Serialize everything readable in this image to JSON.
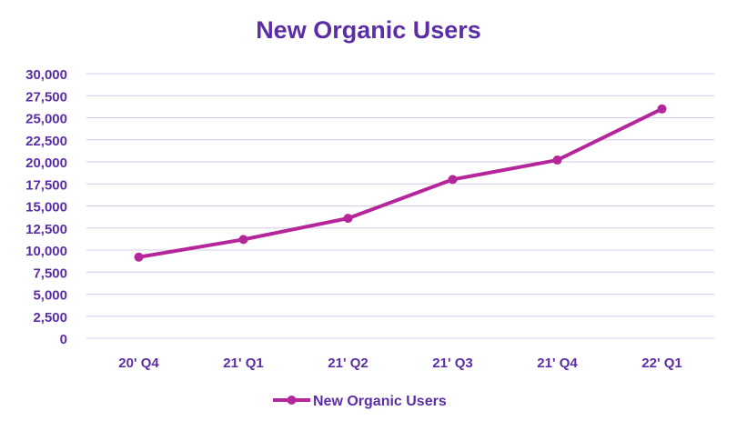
{
  "colors": {
    "title": "#5b2ea6",
    "axis_text": "#5b2ea6",
    "series": "#b5269a",
    "grid": "#d4cbe6"
  },
  "chart_data": {
    "type": "line",
    "title": "New Organic Users",
    "categories": [
      "20' Q4",
      "21' Q1",
      "21' Q2",
      "21' Q3",
      "21' Q4",
      "22' Q1"
    ],
    "series": [
      {
        "name": "New Organic Users",
        "values": [
          9200,
          11200,
          13600,
          18000,
          20200,
          26000
        ],
        "color": "#b5269a"
      }
    ],
    "ylim": [
      0,
      30000
    ],
    "yticks": [
      "0",
      "2,500",
      "5,000",
      "7,500",
      "10,000",
      "12,500",
      "15,000",
      "17,500",
      "20,000",
      "22,500",
      "25,000",
      "27,500",
      "30,000"
    ],
    "grid": true,
    "legend": "bottom",
    "xlabel": "",
    "ylabel": ""
  }
}
